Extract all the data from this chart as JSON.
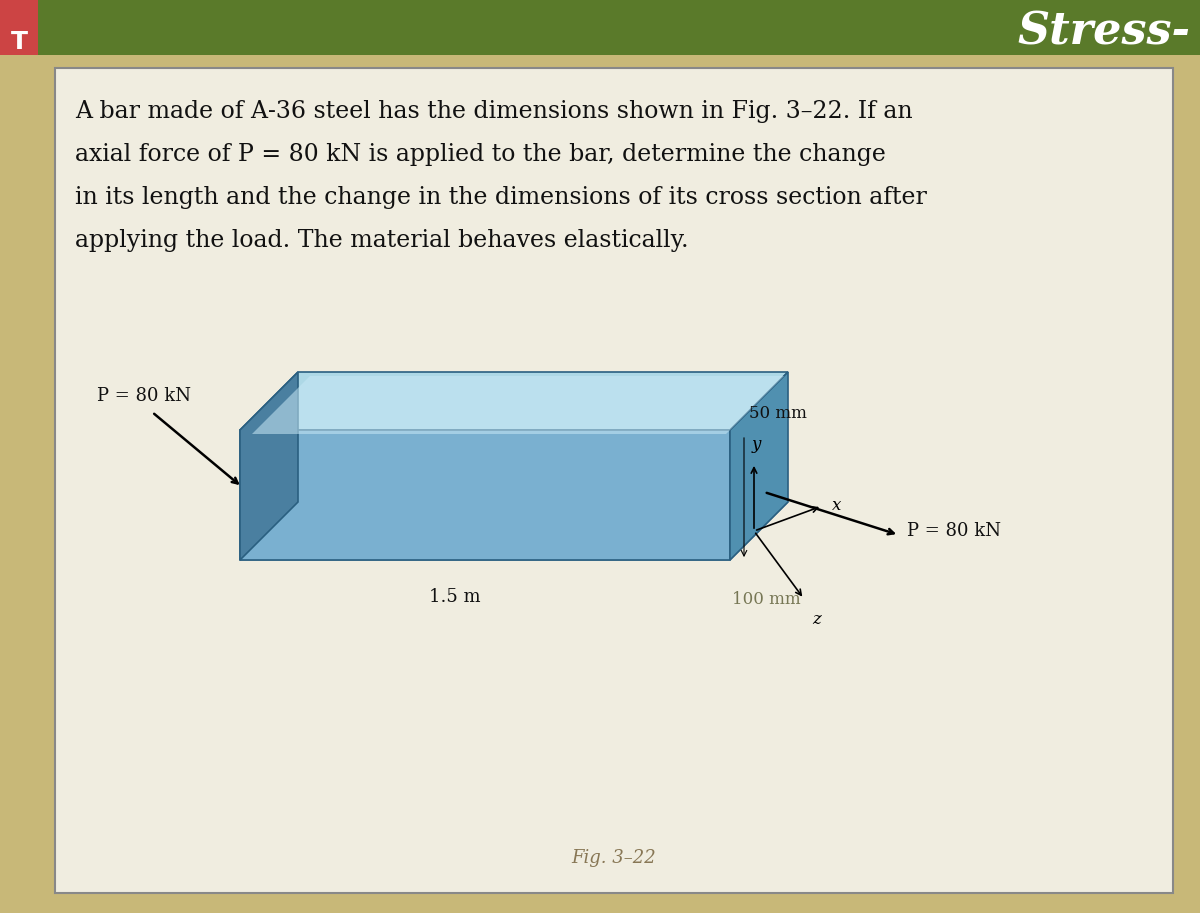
{
  "background_color": "#c8b878",
  "header_bg": "#5a7a2a",
  "header_text": "Stress-",
  "header_text_color": "#ffffff",
  "tab_color": "#cc4444",
  "tab_text": "T",
  "tab_text_color": "#ffffff",
  "white_panel_bg": "#f0ede0",
  "white_panel_border": "#888888",
  "problem_text_lines": [
    "A bar made of A-36 steel has the dimensions shown in Fig. 3–22. If an",
    "axial force of P = 80 kN is applied to the bar, determine the change",
    "in its length and the change in the dimensions of its cross section after",
    "applying the load. The material behaves elastically."
  ],
  "label_P_left": "P = 80 kN",
  "label_P_right": "P = 80 kN",
  "label_length": "1.5 m",
  "label_width": "50 mm",
  "label_height": "100 mm",
  "fig_label": "Fig. 3–22",
  "axis_x": "x",
  "axis_y": "y",
  "axis_z": "z",
  "bar_top_color": "#add8e6",
  "bar_front_color": "#7ab0d0",
  "bar_side_color": "#4a7fa0",
  "bar_dark_color": "#2a5f80",
  "bar_end_face_color": "#5090b0",
  "bar_edge_color": "#2a5f80"
}
